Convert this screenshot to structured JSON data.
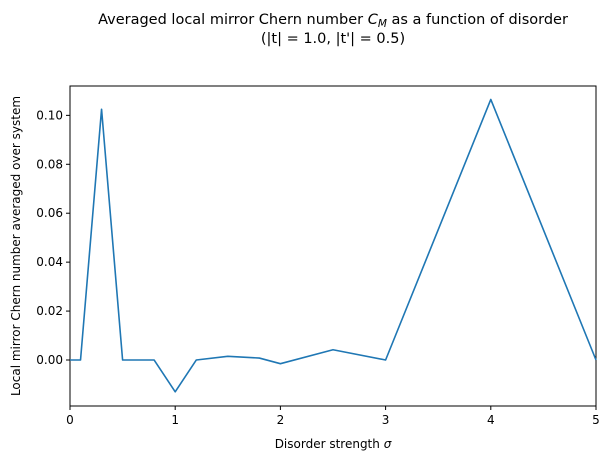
{
  "chart_data": {
    "type": "line",
    "title_line1": "Averaged local mirror Chern number C_M as a function of disorder",
    "title_line1_prefix": "Averaged local mirror Chern number ",
    "title_math_main": "C",
    "title_math_sub": "M",
    "title_line1_suffix": " as a function of disorder",
    "title_line2": "(|t| = 1.0, |t'| = 0.5)",
    "xlabel_prefix": "Disorder strength ",
    "xlabel_symbol": "σ",
    "ylabel": "Local mirror Chern number averaged over system",
    "xlim": [
      0,
      5
    ],
    "ylim": [
      -0.0188,
      0.112
    ],
    "xticks": [
      0,
      1,
      2,
      3,
      4,
      5
    ],
    "xtick_labels": [
      "0",
      "1",
      "2",
      "3",
      "4",
      "5"
    ],
    "yticks": [
      0.0,
      0.02,
      0.04,
      0.06,
      0.08,
      0.1
    ],
    "ytick_labels": [
      "0.00",
      "0.02",
      "0.04",
      "0.06",
      "0.08",
      "0.10"
    ],
    "grid": false,
    "legend": "none",
    "line_color": "#1f77b4",
    "x": [
      0.0,
      0.1,
      0.3,
      0.5,
      0.8,
      1.0,
      1.2,
      1.5,
      1.8,
      2.0,
      2.5,
      3.0,
      4.0,
      5.0
    ],
    "y": [
      0.0,
      0.0,
      0.1025,
      0.0,
      0.0,
      -0.013,
      0.0,
      0.0015,
      0.0008,
      -0.0015,
      0.0042,
      0.0,
      0.1065,
      0.0
    ]
  }
}
